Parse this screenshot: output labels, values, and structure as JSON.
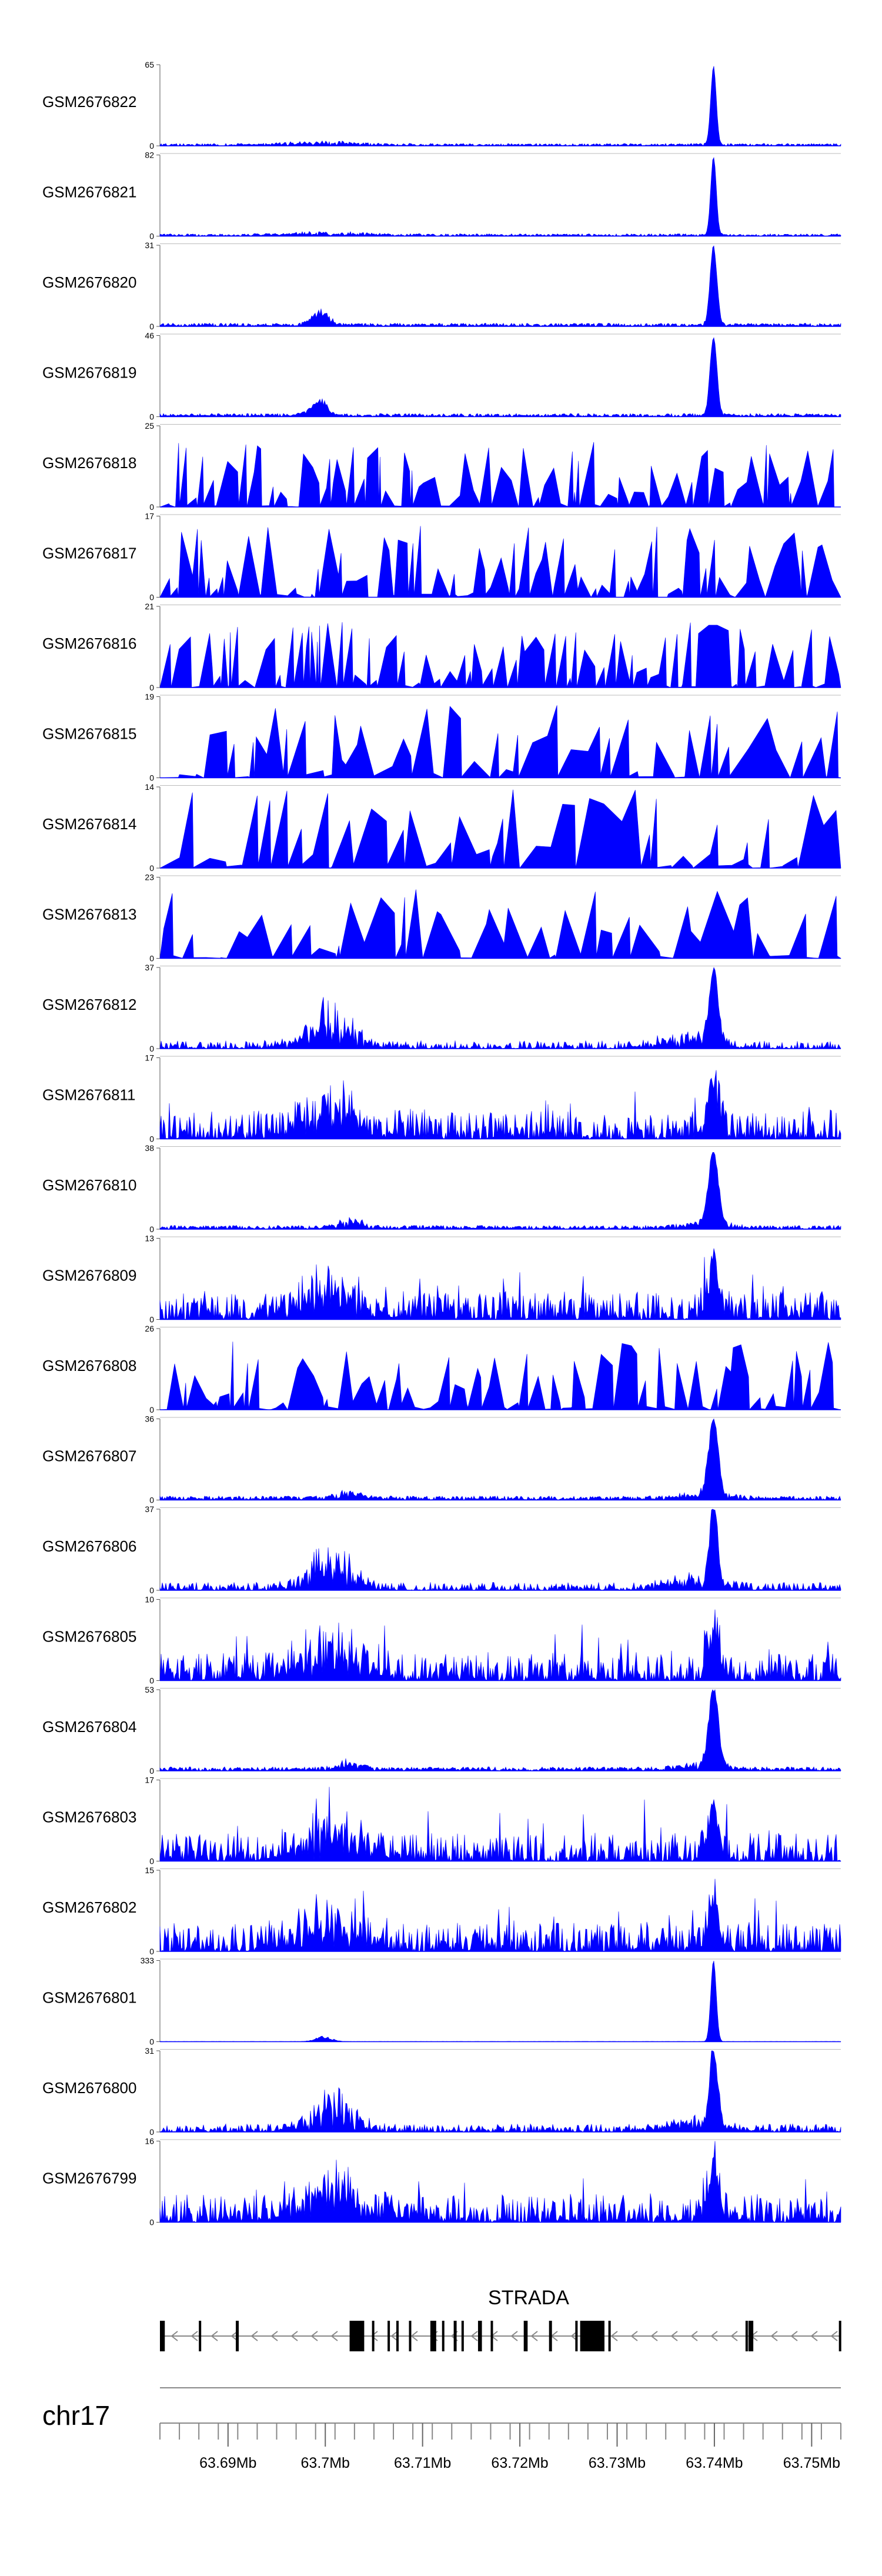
{
  "chart_data": {
    "type": "area",
    "fill_color": "#0000ff",
    "chromosome": "chr17",
    "gene": {
      "name": "STRADA",
      "strand": "-",
      "start": 63682000,
      "end": 63752000,
      "exons": [
        [
          63682000,
          63682500
        ],
        [
          63686000,
          63686200
        ],
        [
          63689800,
          63690100
        ],
        [
          63701500,
          63703000
        ],
        [
          63703800,
          63704000
        ],
        [
          63705400,
          63705600
        ],
        [
          63706300,
          63706500
        ],
        [
          63707600,
          63707800
        ],
        [
          63709800,
          63710400
        ],
        [
          63711000,
          63711200
        ],
        [
          63712200,
          63712500
        ],
        [
          63713000,
          63713200
        ],
        [
          63714700,
          63715100
        ],
        [
          63716000,
          63716200
        ],
        [
          63719400,
          63719800
        ],
        [
          63722000,
          63722300
        ],
        [
          63724700,
          63724900
        ],
        [
          63725200,
          63727700
        ],
        [
          63728100,
          63728300
        ],
        [
          63742200,
          63742400
        ],
        [
          63742500,
          63743000
        ],
        [
          63751800,
          63752000
        ]
      ]
    },
    "x_axis": {
      "xlim": [
        63682000,
        63752000
      ],
      "tick_labels": [
        {
          "pos": 63689000,
          "label": "63.69Mb"
        },
        {
          "pos": 63699000,
          "label": "63.7Mb"
        },
        {
          "pos": 63709000,
          "label": "63.71Mb"
        },
        {
          "pos": 63719000,
          "label": "63.72Mb"
        },
        {
          "pos": 63729000,
          "label": "63.73Mb"
        },
        {
          "pos": 63739000,
          "label": "63.74Mb"
        },
        {
          "pos": 63749000,
          "label": "63.75Mb"
        }
      ],
      "minor_step": 2000
    },
    "tracks": [
      {
        "name": "GSM2676822",
        "ymax": 65,
        "peak_height": 65,
        "profile": "peak"
      },
      {
        "name": "GSM2676821",
        "ymax": 82,
        "peak_height": 82,
        "profile": "peak"
      },
      {
        "name": "GSM2676820",
        "ymax": 31,
        "peak_height": 31,
        "profile": "peak_mid"
      },
      {
        "name": "GSM2676819",
        "ymax": 46,
        "peak_height": 46,
        "profile": "peak_mid"
      },
      {
        "name": "GSM2676818",
        "ymax": 25,
        "peak_height": 20,
        "profile": "sparse"
      },
      {
        "name": "GSM2676817",
        "ymax": 17,
        "peak_height": 15,
        "profile": "sparse"
      },
      {
        "name": "GSM2676816",
        "ymax": 21,
        "peak_height": 17,
        "profile": "sparse"
      },
      {
        "name": "GSM2676815",
        "ymax": 19,
        "peak_height": 18,
        "profile": "very_sparse"
      },
      {
        "name": "GSM2676814",
        "ymax": 14,
        "peak_height": 14,
        "profile": "very_sparse"
      },
      {
        "name": "GSM2676813",
        "ymax": 23,
        "peak_height": 20,
        "profile": "very_sparse"
      },
      {
        "name": "GSM2676812",
        "ymax": 37,
        "peak_height": 37,
        "profile": "noisy_peak"
      },
      {
        "name": "GSM2676811",
        "ymax": 17,
        "peak_height": 17,
        "profile": "noisy"
      },
      {
        "name": "GSM2676810",
        "ymax": 38,
        "peak_height": 36,
        "profile": "peak_broad"
      },
      {
        "name": "GSM2676809",
        "ymax": 13,
        "peak_height": 13,
        "profile": "noisy"
      },
      {
        "name": "GSM2676808",
        "ymax": 26,
        "peak_height": 22,
        "profile": "sparse"
      },
      {
        "name": "GSM2676807",
        "ymax": 36,
        "peak_height": 36,
        "profile": "peak_broad"
      },
      {
        "name": "GSM2676806",
        "ymax": 37,
        "peak_height": 37,
        "profile": "noisy_peak"
      },
      {
        "name": "GSM2676805",
        "ymax": 10,
        "peak_height": 10,
        "profile": "noisy"
      },
      {
        "name": "GSM2676804",
        "ymax": 53,
        "peak_height": 53,
        "profile": "peak_broad"
      },
      {
        "name": "GSM2676803",
        "ymax": 17,
        "peak_height": 17,
        "profile": "noisy"
      },
      {
        "name": "GSM2676802",
        "ymax": 15,
        "peak_height": 15,
        "profile": "noisy"
      },
      {
        "name": "GSM2676801",
        "ymax": 333,
        "peak_height": 333,
        "profile": "clean_peak"
      },
      {
        "name": "GSM2676800",
        "ymax": 31,
        "peak_height": 31,
        "profile": "noisy_peak"
      },
      {
        "name": "GSM2676799",
        "ymax": 16,
        "peak_height": 16,
        "profile": "noisy"
      }
    ]
  }
}
